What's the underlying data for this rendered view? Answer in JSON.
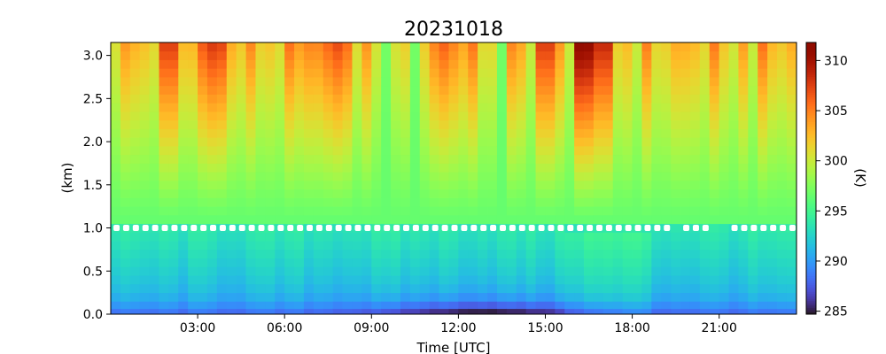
{
  "chart_data": {
    "type": "heatmap",
    "title": "20231018",
    "xlabel": "Time [UTC]",
    "ylabel": "(km)",
    "colorbar_label": "(K)",
    "colormap": "turbo",
    "xlim_hours": [
      0,
      23.67
    ],
    "ylim": [
      0.0,
      3.15
    ],
    "clim": [
      284.7,
      311.8
    ],
    "x_ticks": [
      {
        "hour": 3,
        "label": "03:00"
      },
      {
        "hour": 6,
        "label": "06:00"
      },
      {
        "hour": 9,
        "label": "09:00"
      },
      {
        "hour": 12,
        "label": "12:00"
      },
      {
        "hour": 15,
        "label": "15:00"
      },
      {
        "hour": 18,
        "label": "18:00"
      },
      {
        "hour": 21,
        "label": "21:00"
      }
    ],
    "y_ticks": [
      {
        "value": 0.0,
        "label": "0.0"
      },
      {
        "value": 0.5,
        "label": "0.5"
      },
      {
        "value": 1.0,
        "label": "1.0"
      },
      {
        "value": 1.5,
        "label": "1.5"
      },
      {
        "value": 2.0,
        "label": "2.0"
      },
      {
        "value": 2.5,
        "label": "2.5"
      },
      {
        "value": 3.0,
        "label": "3.0"
      }
    ],
    "colorbar_ticks": [
      {
        "value": 285,
        "label": "285"
      },
      {
        "value": 290,
        "label": "290"
      },
      {
        "value": 295,
        "label": "295"
      },
      {
        "value": 300,
        "label": "300"
      },
      {
        "value": 305,
        "label": "305"
      },
      {
        "value": 310,
        "label": "310"
      }
    ],
    "time_steps_hours": 71,
    "time_step_hours": 0.3333,
    "height_levels_km": [
      0.03,
      0.1,
      0.2,
      0.3,
      0.4,
      0.5,
      0.6,
      0.7,
      0.8,
      0.9,
      1.0,
      1.1,
      1.2,
      1.3,
      1.4,
      1.5,
      1.6,
      1.7,
      1.8,
      1.9,
      2.0,
      2.1,
      2.2,
      2.3,
      2.4,
      2.5,
      2.6,
      2.7,
      2.8,
      2.9,
      3.0,
      3.1
    ],
    "warm_columns_peak_K": [
      {
        "hour": 2.0,
        "top_K": 308
      },
      {
        "hour": 3.6,
        "top_K": 308
      },
      {
        "hour": 7.8,
        "top_K": 307
      },
      {
        "hour": 11.5,
        "top_K": 306
      },
      {
        "hour": 15.0,
        "top_K": 308
      },
      {
        "hour": 16.3,
        "top_K": 311.5
      },
      {
        "hour": 17.0,
        "top_K": 309
      }
    ],
    "cool_columns": [
      {
        "hour": 9.4,
        "top_K": 297
      },
      {
        "hour": 10.4,
        "top_K": 297
      },
      {
        "hour": 13.4,
        "top_K": 297
      },
      {
        "hour": 21.3,
        "top_K": 302
      }
    ],
    "surface_min_K": 285,
    "surface_min_hour": 13.0,
    "marker_height_km": 1.0,
    "marker_gaps_hours": [
      [
        19.2,
        19.8
      ],
      [
        20.8,
        21.5
      ]
    ]
  }
}
